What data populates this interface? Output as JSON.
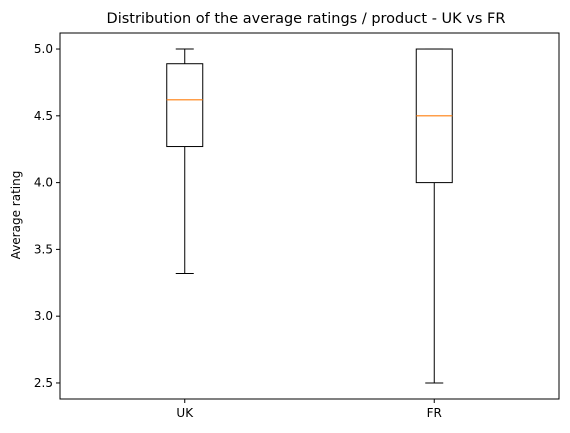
{
  "chart_data": {
    "type": "boxplot",
    "title": "Distribution of the average ratings / product - UK vs FR",
    "xlabel": "",
    "ylabel": "Average rating",
    "ylim": [
      2.38,
      5.12
    ],
    "yticks": [
      "2.5",
      "3.0",
      "3.5",
      "4.0",
      "4.5",
      "5.0"
    ],
    "categories": [
      "UK",
      "FR"
    ],
    "boxes": [
      {
        "name": "UK",
        "whisker_low": 3.32,
        "q1": 4.27,
        "median": 4.62,
        "q3": 4.89,
        "whisker_high": 5.0
      },
      {
        "name": "FR",
        "whisker_low": 2.5,
        "q1": 4.0,
        "median": 4.5,
        "q3": 5.0,
        "whisker_high": 5.0
      }
    ],
    "grid": false,
    "colors": {
      "box": "#000000",
      "median": "#ff7f0e",
      "background": "#ffffff"
    }
  }
}
